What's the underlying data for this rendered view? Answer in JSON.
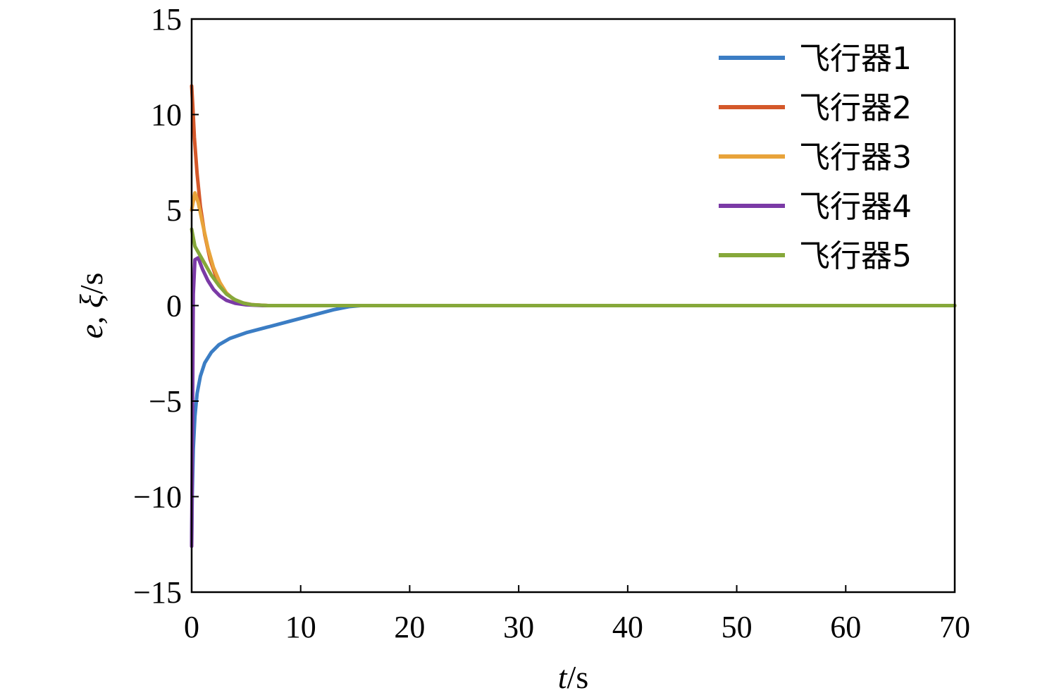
{
  "chart_data": {
    "type": "line",
    "xlabel": {
      "var": "t",
      "unit": "/s"
    },
    "ylabel": {
      "var": "e, ξ",
      "unit": "/s"
    },
    "xlim": [
      0,
      70
    ],
    "ylim": [
      -15,
      15
    ],
    "xticks": [
      0,
      10,
      20,
      30,
      40,
      50,
      60,
      70
    ],
    "yticks": [
      15,
      10,
      5,
      0,
      -5,
      -10,
      -15
    ],
    "ytick_labels": [
      "15",
      "10",
      "5",
      "0",
      "−5",
      "−10",
      "−15"
    ],
    "grid": false,
    "legend_position": "top-right",
    "series": [
      {
        "name": "飞行器1",
        "color": "#3b7dc4",
        "x": [
          0,
          0.05,
          0.15,
          0.3,
          0.5,
          0.8,
          1.2,
          1.8,
          2.5,
          3.5,
          5,
          7,
          9,
          11,
          13,
          14.5,
          15.5,
          20,
          70
        ],
        "y": [
          -12.5,
          -10,
          -7.5,
          -5.8,
          -4.6,
          -3.7,
          -3.0,
          -2.45,
          -2.05,
          -1.72,
          -1.42,
          -1.12,
          -0.82,
          -0.52,
          -0.22,
          -0.05,
          0,
          0,
          0
        ]
      },
      {
        "name": "飞行器2",
        "color": "#d4582a",
        "x": [
          0,
          0.1,
          0.25,
          0.5,
          0.8,
          1.2,
          1.7,
          2.3,
          3,
          3.8,
          4.6,
          5.5,
          7,
          70
        ],
        "y": [
          11.5,
          10.5,
          8.8,
          6.9,
          5.2,
          3.7,
          2.4,
          1.4,
          0.75,
          0.35,
          0.15,
          0.05,
          0,
          0
        ]
      },
      {
        "name": "飞行器3",
        "color": "#e8a33a",
        "x": [
          0,
          0.3,
          0.6,
          1.0,
          1.5,
          2.0,
          2.6,
          3.2,
          3.9,
          4.7,
          5.5,
          7,
          70
        ],
        "y": [
          5.0,
          5.9,
          5.4,
          4.3,
          3.0,
          2.0,
          1.2,
          0.65,
          0.3,
          0.12,
          0.04,
          0,
          0
        ]
      },
      {
        "name": "飞行器4",
        "color": "#7b3aa6",
        "x": [
          0,
          0.15,
          0.3,
          0.6,
          1.0,
          1.5,
          2.0,
          2.6,
          3.2,
          4.0,
          5.0,
          6.5,
          70
        ],
        "y": [
          -12.6,
          0.6,
          2.4,
          2.5,
          1.9,
          1.3,
          0.85,
          0.5,
          0.27,
          0.12,
          0.04,
          0,
          0
        ]
      },
      {
        "name": "飞行器5",
        "color": "#86a83a",
        "x": [
          0,
          0.3,
          0.7,
          1.2,
          1.8,
          2.5,
          3.2,
          4.0,
          4.8,
          5.6,
          7,
          70
        ],
        "y": [
          4.0,
          3.1,
          2.7,
          2.2,
          1.6,
          1.05,
          0.6,
          0.3,
          0.12,
          0.04,
          0,
          0
        ]
      }
    ]
  }
}
